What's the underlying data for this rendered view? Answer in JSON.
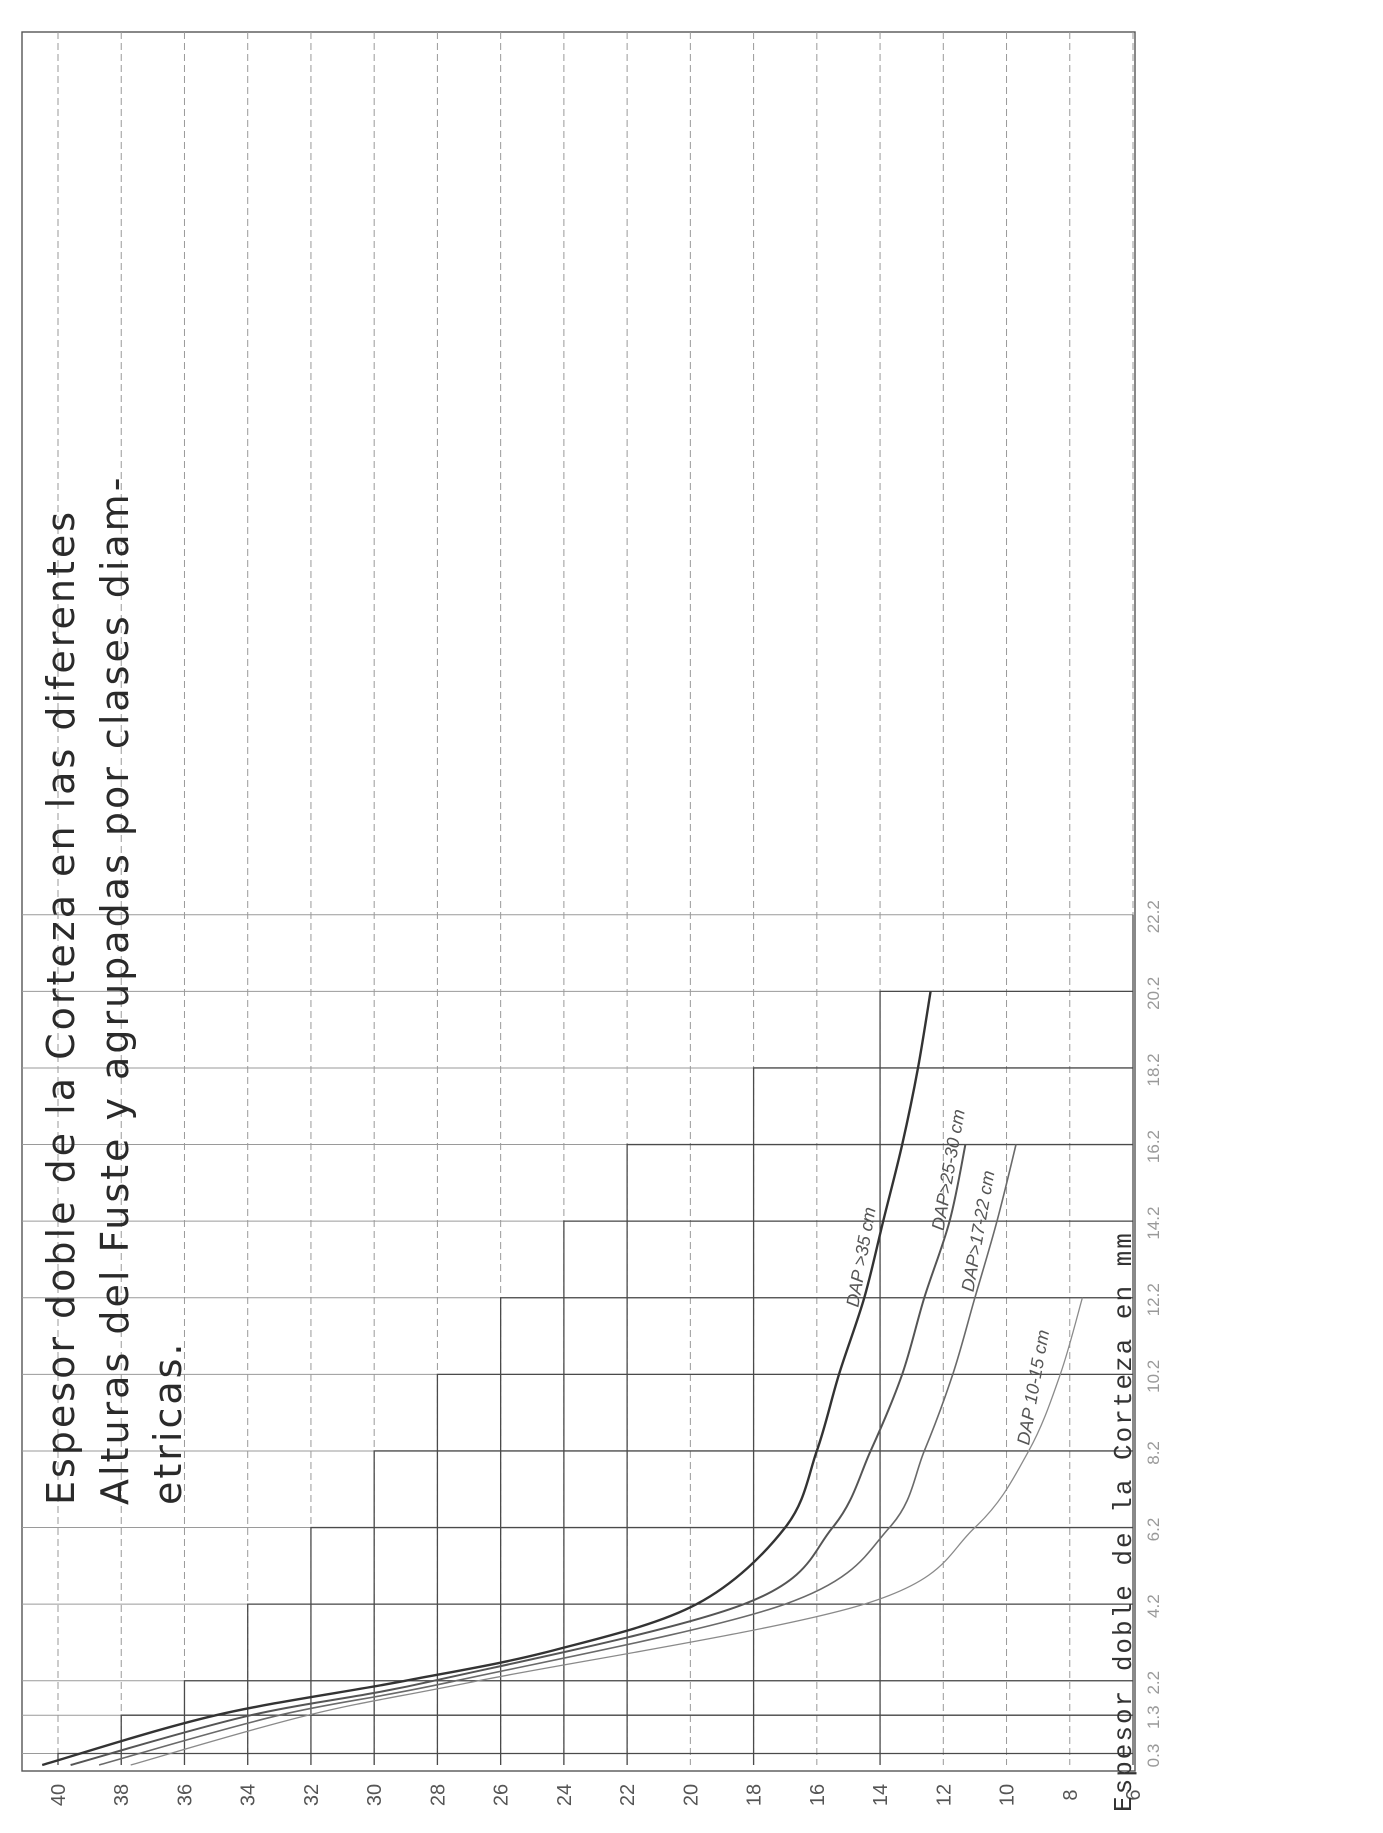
{
  "caption": {
    "line1": "Espesor doble de la Corteza en las diferentes",
    "line2": "Alturas del Fuste y agrupadas por clases diam-",
    "line3": "etricas."
  },
  "chart_data": {
    "type": "line",
    "title": "",
    "ylabel": "Espesor doble de la Corteza en mm",
    "xlabel": "",
    "y_ticks": [
      "40",
      "38",
      "36",
      "34",
      "32",
      "30",
      "28",
      "26",
      "24",
      "22",
      "20",
      "18",
      "16",
      "14",
      "12",
      "10",
      "8",
      "6"
    ],
    "x_ticks": [
      "0.3",
      "1.3",
      "2.2",
      "4.2",
      "6.2",
      "8.2",
      "10.2",
      "12.2",
      "14.2",
      "16.2",
      "18.2",
      "20.2",
      "22.2"
    ],
    "x_values": [
      0.3,
      1.3,
      2.2,
      4.2,
      6.2,
      8.2,
      10.2,
      12.2,
      14.2,
      16.2,
      18.2,
      20.2,
      22.2
    ],
    "ylim": [
      6,
      40
    ],
    "grid": true,
    "series": [
      {
        "name": "DAP >35 cm",
        "x": [
          0.0,
          1.3,
          2.2,
          3.0,
          4.2,
          6.2,
          8.2,
          10.2,
          12.2,
          14.2,
          16.2,
          18.2,
          20.2
        ],
        "y": [
          40.5,
          35.0,
          29.0,
          24.3,
          19.8,
          17.0,
          16.0,
          15.3,
          14.5,
          13.9,
          13.3,
          12.8,
          12.4
        ]
      },
      {
        "name": "DAP>25-30 cm",
        "x": [
          0.0,
          1.3,
          2.2,
          4.2,
          6.2,
          8.2,
          10.2,
          12.2,
          14.2,
          16.2
        ],
        "y": [
          39.6,
          33.9,
          28.1,
          18.3,
          15.5,
          14.3,
          13.3,
          12.6,
          11.8,
          11.3
        ]
      },
      {
        "name": "DAP>17-22 cm",
        "x": [
          0.0,
          1.3,
          2.2,
          4.2,
          6.2,
          8.2,
          10.2,
          12.2,
          14.2,
          16.2
        ],
        "y": [
          38.7,
          33.0,
          27.4,
          17.0,
          13.7,
          12.6,
          11.7,
          11.0,
          10.3,
          9.7
        ]
      },
      {
        "name": "DAP 10-15 cm",
        "x": [
          0.0,
          1.3,
          2.2,
          4.2,
          6.2,
          8.2,
          10.2,
          12.2
        ],
        "y": [
          37.7,
          32.1,
          26.7,
          14.5,
          11.0,
          9.3,
          8.3,
          7.6
        ]
      }
    ],
    "stair_steps": [
      {
        "x": 0.3,
        "y": 40
      },
      {
        "x": 1.3,
        "y": 38
      },
      {
        "x": 2.2,
        "y": 36
      },
      {
        "x": 4.2,
        "y": 34
      },
      {
        "x": 6.2,
        "y": 32
      },
      {
        "x": 8.2,
        "y": 30
      },
      {
        "x": 10.2,
        "y": 28
      },
      {
        "x": 12.2,
        "y": 26
      },
      {
        "x": 14.2,
        "y": 24
      },
      {
        "x": 16.2,
        "y": 22
      },
      {
        "x": 18.2,
        "y": 18
      },
      {
        "x": 20.2,
        "y": 14
      },
      {
        "x": 22.2,
        "y": 6
      }
    ]
  }
}
